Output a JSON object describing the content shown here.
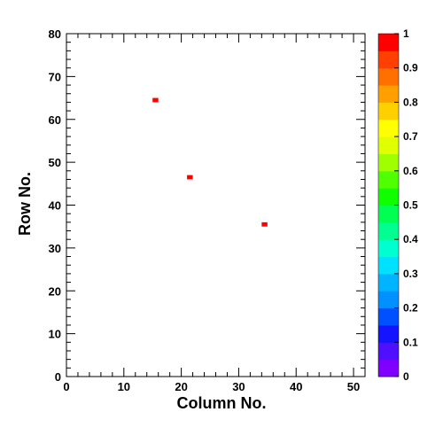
{
  "chart_data": {
    "type": "heatmap",
    "xlabel": "Column No.",
    "ylabel": "Row No.",
    "xlim": [
      0,
      52
    ],
    "ylim": [
      0,
      80
    ],
    "xticks": [
      0,
      10,
      20,
      30,
      40,
      50
    ],
    "yticks": [
      0,
      10,
      20,
      30,
      40,
      50,
      60,
      70,
      80
    ],
    "cells": [
      {
        "x": 15,
        "y": 64,
        "value": 1
      },
      {
        "x": 21,
        "y": 46,
        "value": 1
      },
      {
        "x": 34,
        "y": 35,
        "value": 1
      }
    ],
    "colorbar": {
      "range": [
        0,
        1
      ],
      "ticks": [
        "0",
        "0.1",
        "0.2",
        "0.3",
        "0.4",
        "0.5",
        "0.6",
        "0.7",
        "0.8",
        "0.9",
        "1"
      ],
      "colors": [
        "#8000ff",
        "#5010ff",
        "#1414ff",
        "#0050ff",
        "#0090ff",
        "#00b4ff",
        "#00e0ff",
        "#00ffd0",
        "#00ff90",
        "#00ff50",
        "#10ff00",
        "#50ff00",
        "#a0ff00",
        "#e0ff00",
        "#ffff00",
        "#ffd000",
        "#ffa000",
        "#ff7000",
        "#ff4000",
        "#ff0000"
      ]
    },
    "grid": false,
    "legend": "none"
  }
}
